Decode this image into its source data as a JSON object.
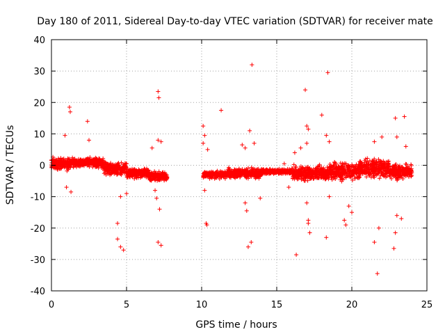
{
  "chart_data": {
    "type": "scatter",
    "title": "Day 180 of 2011, Sidereal Day-to-day VTEC variation (SDTVAR) for receiver mate",
    "xlabel": "GPS time / hours",
    "ylabel": "SDTVAR / TECUs",
    "xlim": [
      0,
      25
    ],
    "ylim": [
      -40,
      40
    ],
    "xticks": [
      0,
      5,
      10,
      15,
      20,
      25
    ],
    "yticks": [
      -40,
      -30,
      -20,
      -10,
      0,
      10,
      20,
      30,
      40
    ],
    "grid": true,
    "marker": "+",
    "color": "#ff0000",
    "series": [
      {
        "name": "SDTVAR",
        "note": "dense band of points near zero with scattered outliers",
        "bands": [
          {
            "x": [
              0.0,
              1.3
            ],
            "center": 0.5,
            "spread": 2.5
          },
          {
            "x": [
              1.3,
              3.5
            ],
            "center": 0.8,
            "spread": 2.0
          },
          {
            "x": [
              3.5,
              5.0
            ],
            "center": -1.0,
            "spread": 2.5
          },
          {
            "x": [
              5.0,
              6.5
            ],
            "center": -2.5,
            "spread": 2.0
          },
          {
            "x": [
              6.5,
              7.7
            ],
            "center": -3.5,
            "spread": 2.0
          },
          {
            "x": [
              10.1,
              11.7
            ],
            "center": -3.0,
            "spread": 1.5
          },
          {
            "x": [
              11.7,
              14.0
            ],
            "center": -2.5,
            "spread": 2.0
          },
          {
            "x": [
              14.0,
              16.0
            ],
            "center": -2.0,
            "spread": 1.0
          },
          {
            "x": [
              16.0,
              18.5
            ],
            "center": -2.5,
            "spread": 3.0
          },
          {
            "x": [
              18.5,
              20.5
            ],
            "center": -2.0,
            "spread": 3.5
          },
          {
            "x": [
              20.5,
              22.5
            ],
            "center": -1.0,
            "spread": 4.0
          },
          {
            "x": [
              22.5,
              24.0
            ],
            "center": -2.0,
            "spread": 3.0
          }
        ],
        "outliers": [
          [
            1.2,
            18.5
          ],
          [
            1.25,
            17.0
          ],
          [
            0.9,
            9.5
          ],
          [
            2.4,
            14.0
          ],
          [
            2.5,
            8.0
          ],
          [
            1.0,
            -7.0
          ],
          [
            1.3,
            -8.5
          ],
          [
            4.4,
            -18.5
          ],
          [
            4.4,
            -23.5
          ],
          [
            4.6,
            -26.0
          ],
          [
            4.8,
            -27.0
          ],
          [
            4.6,
            -10.0
          ],
          [
            5.0,
            -9.0
          ],
          [
            7.1,
            23.5
          ],
          [
            7.15,
            21.5
          ],
          [
            7.1,
            8.0
          ],
          [
            7.3,
            7.5
          ],
          [
            6.9,
            -8.0
          ],
          [
            7.0,
            -10.5
          ],
          [
            7.2,
            -14.0
          ],
          [
            7.1,
            -24.5
          ],
          [
            7.3,
            -25.5
          ],
          [
            6.7,
            5.5
          ],
          [
            10.1,
            12.5
          ],
          [
            10.2,
            9.5
          ],
          [
            10.1,
            7.0
          ],
          [
            10.4,
            5.0
          ],
          [
            10.3,
            -18.5
          ],
          [
            10.35,
            -19.0
          ],
          [
            10.2,
            -8.0
          ],
          [
            11.3,
            17.5
          ],
          [
            12.7,
            6.5
          ],
          [
            12.9,
            5.5
          ],
          [
            13.0,
            -14.5
          ],
          [
            13.1,
            -26.0
          ],
          [
            13.3,
            -24.5
          ],
          [
            13.2,
            11.0
          ],
          [
            13.35,
            32.0
          ],
          [
            13.5,
            7.0
          ],
          [
            12.9,
            -12.0
          ],
          [
            13.9,
            -10.5
          ],
          [
            15.5,
            0.5
          ],
          [
            15.8,
            -7.0
          ],
          [
            16.2,
            4.0
          ],
          [
            16.3,
            -28.5
          ],
          [
            16.6,
            5.5
          ],
          [
            16.9,
            24.0
          ],
          [
            17.0,
            12.5
          ],
          [
            17.1,
            11.5
          ],
          [
            17.0,
            7.0
          ],
          [
            17.1,
            -17.5
          ],
          [
            17.1,
            -18.5
          ],
          [
            17.2,
            -21.5
          ],
          [
            17.0,
            -12.0
          ],
          [
            18.0,
            16.0
          ],
          [
            18.3,
            9.5
          ],
          [
            18.5,
            7.5
          ],
          [
            18.4,
            29.5
          ],
          [
            18.3,
            -23.0
          ],
          [
            18.5,
            -10.0
          ],
          [
            19.5,
            -17.5
          ],
          [
            19.6,
            -19.0
          ],
          [
            19.8,
            -13.0
          ],
          [
            20.0,
            -15.0
          ],
          [
            21.5,
            -24.5
          ],
          [
            21.7,
            -34.5
          ],
          [
            21.8,
            -20.0
          ],
          [
            21.5,
            7.5
          ],
          [
            22.0,
            9.0
          ],
          [
            22.9,
            15.0
          ],
          [
            23.0,
            9.0
          ],
          [
            22.8,
            -26.5
          ],
          [
            22.9,
            -21.5
          ],
          [
            23.0,
            -16.0
          ],
          [
            23.5,
            15.5
          ],
          [
            23.6,
            6.0
          ],
          [
            23.3,
            -17.0
          ]
        ]
      }
    ]
  }
}
